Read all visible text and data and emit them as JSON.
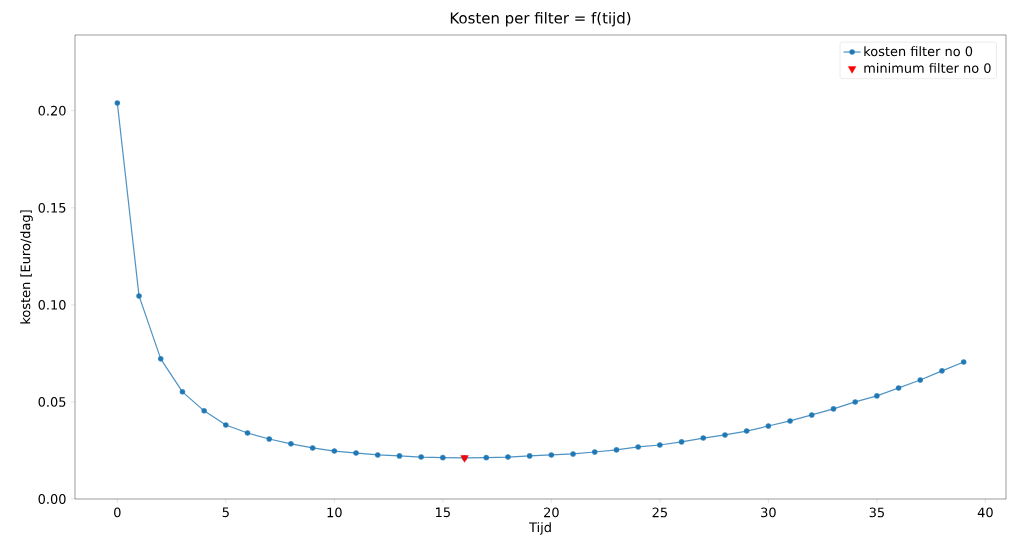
{
  "chart_data": {
    "type": "line",
    "title": "Kosten per filter = f(tijd)",
    "xlabel": "Tijd",
    "ylabel": "kosten [Euro/dag]",
    "xlim": [
      -1.95,
      40.95
    ],
    "ylim": [
      0,
      0.239
    ],
    "xticks": [
      0,
      5,
      10,
      15,
      20,
      25,
      30,
      35,
      40
    ],
    "yticks": [
      {
        "value": 0,
        "label": "0.00"
      },
      {
        "value": 0.05,
        "label": "0.05"
      },
      {
        "value": 0.1,
        "label": "0.10"
      },
      {
        "value": 0.15,
        "label": "0.15"
      },
      {
        "value": 0.2,
        "label": "0.20"
      }
    ],
    "legend": "top right",
    "grid": false,
    "series": [
      {
        "name": "kosten filter no 0",
        "color": "#1f77b4",
        "marker": "circle",
        "line_style": "solid",
        "x": [
          0,
          1,
          2,
          3,
          4,
          5,
          6,
          7,
          8,
          9,
          10,
          11,
          12,
          13,
          14,
          15,
          16,
          17,
          18,
          19,
          20,
          21,
          22,
          23,
          24,
          25,
          26,
          27,
          28,
          29,
          30,
          31,
          32,
          33,
          34,
          35,
          36,
          37,
          38,
          39
        ],
        "values": [
          0.204,
          0.1046,
          0.0722,
          0.0552,
          0.0454,
          0.0381,
          0.034,
          0.0309,
          0.0284,
          0.0263,
          0.0247,
          0.0237,
          0.0227,
          0.0222,
          0.0216,
          0.0213,
          0.0212,
          0.0213,
          0.0216,
          0.0222,
          0.0227,
          0.0232,
          0.0242,
          0.0253,
          0.0268,
          0.0278,
          0.0294,
          0.0314,
          0.033,
          0.035,
          0.0376,
          0.0402,
          0.0433,
          0.0464,
          0.05,
          0.0531,
          0.0572,
          0.0613,
          0.066,
          0.0706
        ]
      },
      {
        "name": "minimum filter no 0",
        "type": "scatter",
        "color": "#ff0000",
        "marker": "triangle",
        "x": [
          16
        ],
        "values": [
          0.0212
        ]
      }
    ]
  }
}
